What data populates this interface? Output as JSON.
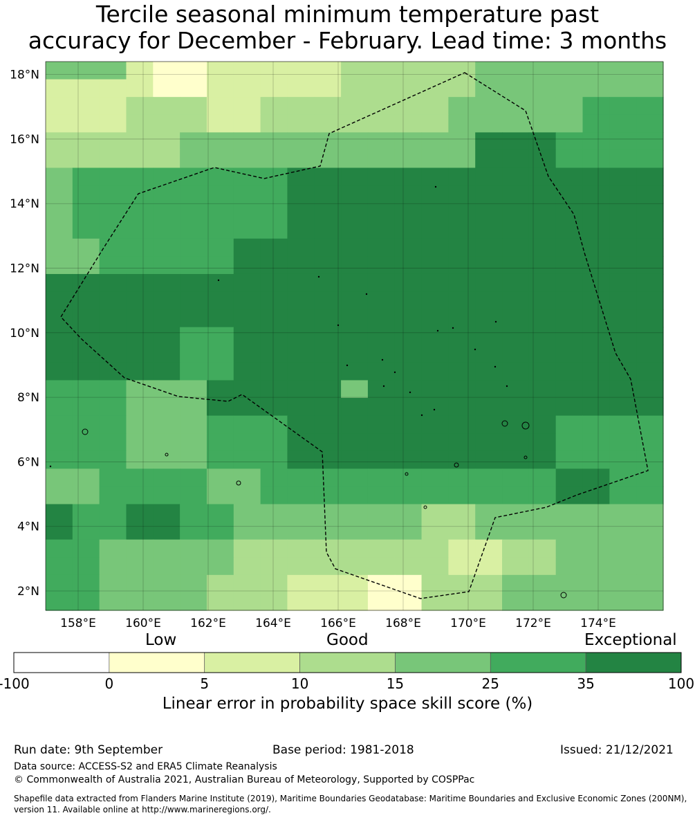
{
  "title": {
    "line1": "Tercile seasonal minimum temperature past",
    "line2": "accuracy for December - February. Lead time: 3 months"
  },
  "map": {
    "lon_range": [
      157,
      176
    ],
    "lat_range": [
      1.4,
      18.4
    ],
    "lat_ticks": [
      "18°N",
      "16°N",
      "14°N",
      "12°N",
      "10°N",
      "8°N",
      "6°N",
      "4°N",
      "2°N"
    ],
    "lon_ticks": [
      "158°E",
      "160°E",
      "162°E",
      "164°E",
      "166°E",
      "168°E",
      "170°E",
      "172°E",
      "174°E"
    ],
    "grid": true,
    "eez_boundary": "dashed"
  },
  "colorbar": {
    "category_labels": [
      "Low",
      "Good",
      "Exceptional"
    ],
    "ticks": [
      "-100",
      "0",
      "5",
      "10",
      "15",
      "25",
      "35",
      "100"
    ],
    "colors": [
      "#ffffff",
      "#ffffcc",
      "#d9f0a3",
      "#addd8e",
      "#78c679",
      "#41ab5d",
      "#238443"
    ],
    "label": "Linear error in probability space skill score (%)"
  },
  "footer": {
    "run_date": "Run date: 9th September",
    "base_period": "Base period: 1981-2018",
    "issued": "Issued: 21/12/2021",
    "data_source": "Data source: ACCESS-S2 and ERA5 Climate Reanalysis",
    "copyright": "© Commonwealth of Australia 2021, Australian Bureau of Meteorology, Supported by COSPPac",
    "shapefile_line1": "Shapefile data extracted from Flanders Marine Institute (2019), Maritime Boundaries Geodatabase: Maritime Boundaries and Exclusive Economic Zones (200NM),",
    "shapefile_line2": "version 11. Available online at http://www.marineregions.org/."
  }
}
